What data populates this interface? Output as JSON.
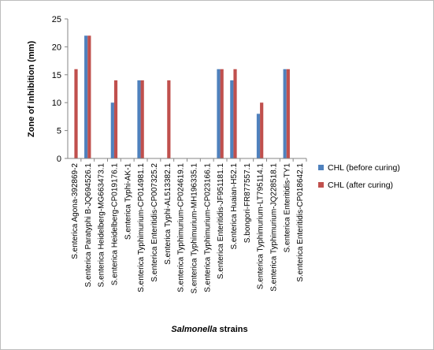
{
  "chart_data": {
    "type": "bar",
    "ylabel": "Zone of inhibition (mm)",
    "xlabel_italic": "Salmonella",
    "xlabel_rest": " strains",
    "ylim": [
      0,
      25
    ],
    "yticks": [
      0,
      5,
      10,
      15,
      20,
      25
    ],
    "grid": false,
    "legend_position": "right",
    "categories": [
      "S.enterica Agona-392869-2",
      "S.enterica Paratyphi B-JQ694526.1",
      "S.enterica Heidelberg-MG663473.1",
      "S.enterica Heidelberg-CP019176.1",
      "S.enterica Typhi-AK-1",
      "S.enterica Typhimurium-CP014981.1",
      "S.enterica Enteritidis-CP007325.2",
      "S.enterica Typhi-AL513382.1",
      "S.enterica Typhimurium-CP024619.1",
      "S.enterica Typhimurium-MH196335.1",
      "S.enterica Typhimurium-CP023166.1",
      "S.enterica Enteritidis-JF951181.1",
      "S.enterica Huaian-H52.1",
      "S.bongori-FR877557.1",
      "S.enterica Typhimurium-LT795114.1",
      "S.enterica Typhimurium-JQ228518.1",
      "S.enterica Enteritidis-TY1",
      "S.enterica Enteritidis-CP018642.1"
    ],
    "series": [
      {
        "name": "CHL (before curing)",
        "color": "#4F81BD",
        "values": [
          0,
          22,
          0,
          10,
          0,
          14,
          0,
          0,
          0,
          0,
          0,
          16,
          14,
          0,
          8,
          0,
          16,
          0
        ]
      },
      {
        "name": "CHL (after curing)",
        "color": "#C0504D",
        "values": [
          16,
          22,
          0,
          14,
          0,
          14,
          0,
          14,
          0,
          0,
          0,
          16,
          16,
          0,
          10,
          0,
          16,
          0
        ]
      }
    ]
  }
}
